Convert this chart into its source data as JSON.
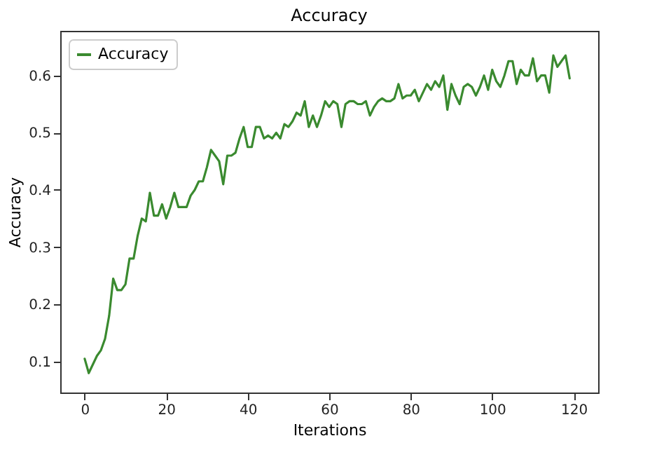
{
  "chart_data": {
    "type": "line",
    "title": "Accuracy",
    "xlabel": "Iterations",
    "ylabel": "Accuracy",
    "x": [
      0,
      1,
      2,
      3,
      4,
      5,
      6,
      7,
      8,
      9,
      10,
      11,
      12,
      13,
      14,
      15,
      16,
      17,
      18,
      19,
      20,
      21,
      22,
      23,
      24,
      25,
      26,
      27,
      28,
      29,
      30,
      31,
      32,
      33,
      34,
      35,
      36,
      37,
      38,
      39,
      40,
      41,
      42,
      43,
      44,
      45,
      46,
      47,
      48,
      49,
      50,
      51,
      52,
      53,
      54,
      55,
      56,
      57,
      58,
      59,
      60,
      61,
      62,
      63,
      64,
      65,
      66,
      67,
      68,
      69,
      70,
      71,
      72,
      73,
      74,
      75,
      76,
      77,
      78,
      79,
      80,
      81,
      82,
      83,
      84,
      85,
      86,
      87,
      88,
      89,
      90,
      91,
      92,
      93,
      94,
      95,
      96,
      97,
      98,
      99,
      100,
      101,
      102,
      103,
      104,
      105,
      106,
      107,
      108,
      109,
      110,
      111,
      112,
      113,
      114,
      115,
      116,
      117,
      118,
      119
    ],
    "series": [
      {
        "name": "Accuracy",
        "color": "#3a8a2f",
        "values": [
          0.105,
          0.08,
          0.095,
          0.11,
          0.12,
          0.14,
          0.18,
          0.245,
          0.225,
          0.225,
          0.235,
          0.28,
          0.28,
          0.32,
          0.35,
          0.345,
          0.395,
          0.355,
          0.355,
          0.375,
          0.35,
          0.37,
          0.395,
          0.37,
          0.37,
          0.37,
          0.39,
          0.4,
          0.415,
          0.415,
          0.44,
          0.47,
          0.46,
          0.45,
          0.41,
          0.46,
          0.46,
          0.465,
          0.49,
          0.51,
          0.475,
          0.475,
          0.51,
          0.51,
          0.49,
          0.495,
          0.49,
          0.5,
          0.49,
          0.515,
          0.51,
          0.52,
          0.535,
          0.53,
          0.555,
          0.51,
          0.53,
          0.51,
          0.53,
          0.555,
          0.545,
          0.555,
          0.55,
          0.51,
          0.55,
          0.555,
          0.555,
          0.55,
          0.55,
          0.555,
          0.53,
          0.545,
          0.555,
          0.56,
          0.555,
          0.555,
          0.56,
          0.585,
          0.56,
          0.565,
          0.565,
          0.575,
          0.555,
          0.57,
          0.585,
          0.575,
          0.59,
          0.58,
          0.6,
          0.54,
          0.585,
          0.565,
          0.55,
          0.58,
          0.585,
          0.58,
          0.565,
          0.58,
          0.6,
          0.575,
          0.61,
          0.59,
          0.58,
          0.6,
          0.625,
          0.625,
          0.585,
          0.61,
          0.6,
          0.6,
          0.63,
          0.59,
          0.6,
          0.6,
          0.57,
          0.635,
          0.615,
          0.625,
          0.635,
          0.595
        ]
      }
    ],
    "xlim": [
      -6,
      126
    ],
    "ylim": [
      0.046,
      0.678
    ],
    "xticks": [
      0,
      20,
      40,
      60,
      80,
      100,
      120
    ],
    "yticks": [
      0.1,
      0.2,
      0.3,
      0.4,
      0.5,
      0.6
    ],
    "legend": "top left",
    "grid": false,
    "marker": "none",
    "line_style": "solid"
  }
}
